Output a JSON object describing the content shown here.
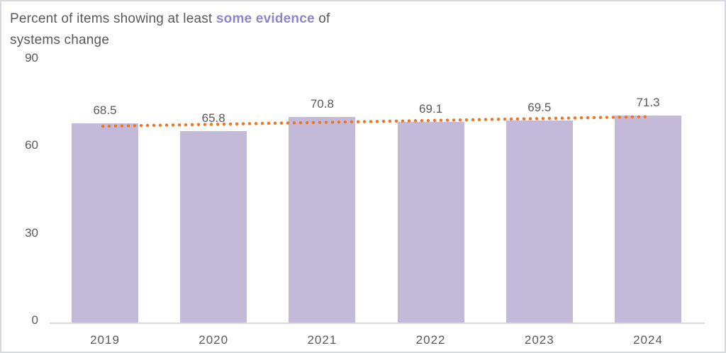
{
  "page": {
    "background_color": "#ffffff",
    "border_color": "#d9d9e0"
  },
  "title": {
    "prefix": "Percent of items showing at least ",
    "highlight": "some evidence",
    "suffix": " of",
    "line2": "systems change",
    "text_color": "#595959",
    "highlight_color": "#9184c8"
  },
  "chart_data": {
    "type": "bar",
    "title": "Percent of items showing at least some evidence of systems change",
    "categories": [
      "2019",
      "2020",
      "2021",
      "2022",
      "2023",
      "2024"
    ],
    "values": [
      68.5,
      65.8,
      70.8,
      69.1,
      69.5,
      71.3
    ],
    "data_labels": [
      "68.5",
      "65.8",
      "70.8",
      "69.1",
      "69.5",
      "71.3"
    ],
    "xlabel": "",
    "ylabel": "",
    "ylim": [
      0,
      90
    ],
    "yticks": [
      0,
      30,
      60,
      90
    ],
    "grid": false,
    "legend": "none",
    "bar_color": "#c3bada",
    "axis_line_color": "#d9d9d9",
    "tick_label_color": "#595959",
    "data_label_color": "#595959",
    "trendline": {
      "style": "dotted",
      "color": "#ee7623",
      "start_value": 67.6,
      "end_value": 70.9
    }
  }
}
